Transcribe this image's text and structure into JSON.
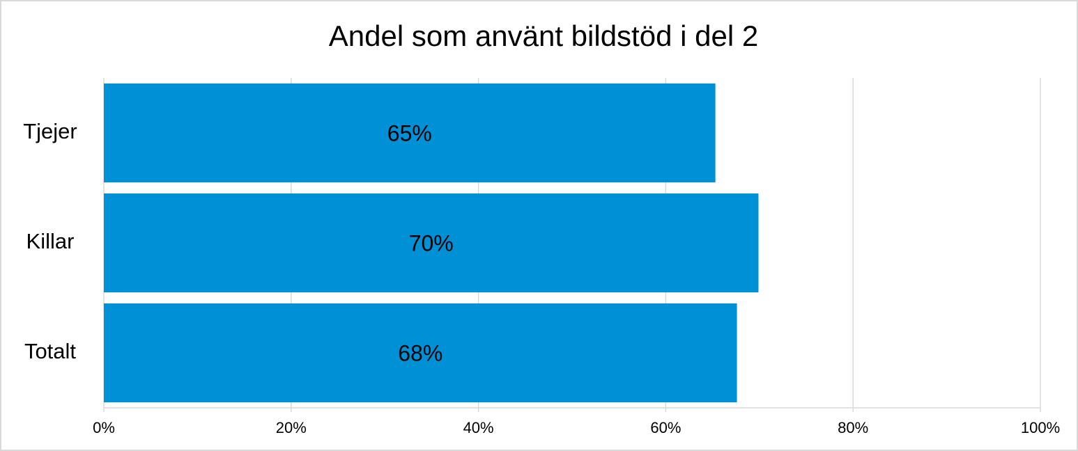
{
  "chart_data": {
    "type": "barh",
    "title": "Andel som använt bildstöd i del 2",
    "categories": [
      "Tjejer",
      "Killar",
      "Totalt"
    ],
    "values": [
      65.3,
      69.9,
      67.6
    ],
    "value_labels": [
      "65%",
      "70%",
      "68%"
    ],
    "color": "#0090d6",
    "xlim": [
      0,
      100
    ],
    "xticks": [
      {
        "value": 0,
        "label": "0%"
      },
      {
        "value": 20,
        "label": "20%"
      },
      {
        "value": 40,
        "label": "40%"
      },
      {
        "value": 60,
        "label": "60%"
      },
      {
        "value": 80,
        "label": "80%"
      },
      {
        "value": 100,
        "label": "100%"
      }
    ],
    "grid": true
  }
}
